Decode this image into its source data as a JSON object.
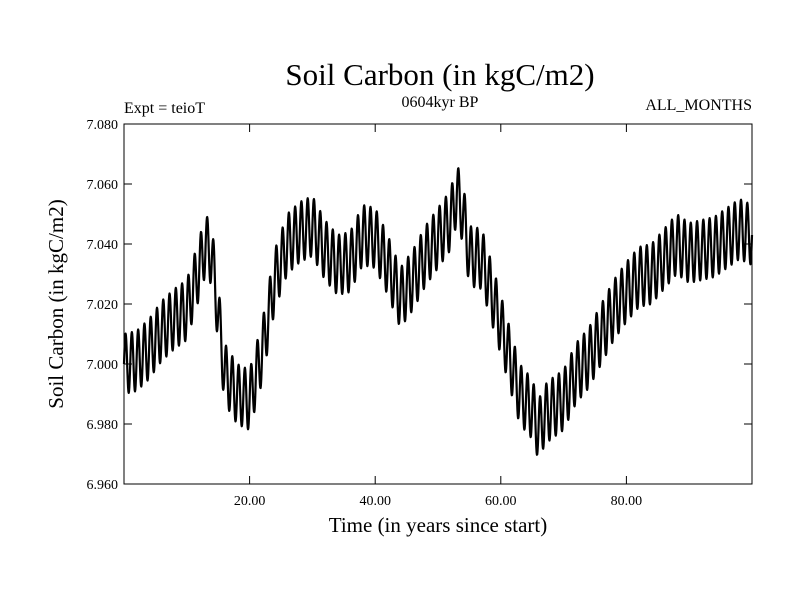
{
  "chart_data": {
    "type": "line",
    "title": "Soil Carbon (in kgC/m2)",
    "subtitle": "0604kyr BP",
    "annotation_left": "Expt = teioT",
    "annotation_right": "ALL_MONTHS",
    "xlabel": "Time (in years since start)",
    "ylabel": "Soil Carbon (in kgC/m2)",
    "xlim": [
      0,
      100
    ],
    "ylim": [
      6.96,
      7.08
    ],
    "x_ticks": [
      20,
      40,
      60,
      80
    ],
    "x_tick_labels": [
      "20.00",
      "40.00",
      "60.00",
      "80.00"
    ],
    "y_ticks": [
      6.96,
      6.98,
      7.0,
      7.02,
      7.04,
      7.06,
      7.08
    ],
    "y_tick_labels": [
      "6.960",
      "6.980",
      "7.000",
      "7.020",
      "7.040",
      "7.060",
      "7.080"
    ],
    "grid": false,
    "line_color": "#000000",
    "seasonal_cycle": {
      "period_years": 1.0,
      "half_amplitude": 0.01
    },
    "annual_mean": {
      "x": [
        0,
        2,
        4,
        6,
        8,
        10,
        12,
        13,
        14,
        16,
        18,
        20,
        21,
        22,
        24,
        26,
        28,
        30,
        32,
        34,
        36,
        38,
        40,
        42,
        44,
        46,
        48,
        50,
        52,
        53,
        54,
        55,
        57,
        60,
        63,
        65,
        66,
        67,
        68,
        70,
        72,
        74,
        76,
        78,
        80,
        82,
        84,
        86,
        88,
        90,
        92,
        94,
        96,
        98,
        100
      ],
      "y": [
        7.0,
        7.001,
        7.005,
        7.011,
        7.015,
        7.018,
        7.032,
        7.04,
        7.036,
        6.997,
        6.99,
        6.988,
        6.996,
        7.004,
        7.028,
        7.04,
        7.044,
        7.046,
        7.038,
        7.033,
        7.034,
        7.043,
        7.042,
        7.033,
        7.022,
        7.028,
        7.036,
        7.042,
        7.048,
        7.057,
        7.05,
        7.036,
        7.035,
        7.013,
        6.99,
        6.985,
        6.978,
        6.983,
        6.985,
        6.988,
        6.997,
        7.002,
        7.01,
        7.018,
        7.024,
        7.029,
        7.03,
        7.035,
        7.04,
        7.037,
        7.038,
        7.039,
        7.042,
        7.045,
        7.043
      ]
    }
  }
}
